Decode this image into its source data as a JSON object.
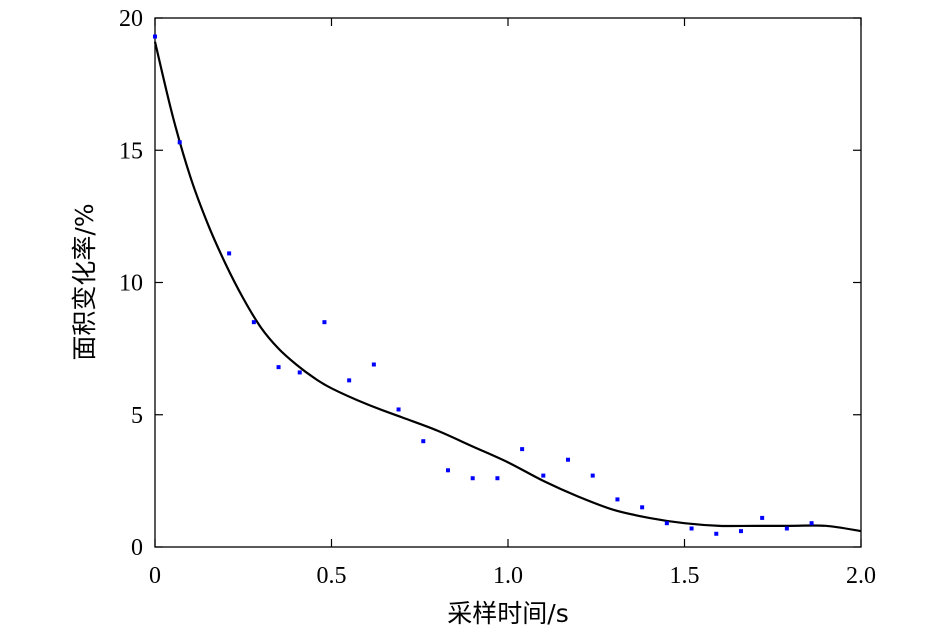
{
  "chart_data": {
    "type": "scatter",
    "title": "",
    "xlabel": "采样时间/s",
    "ylabel": "面积变化率/%",
    "xlim": [
      0,
      2.0
    ],
    "ylim": [
      0,
      20
    ],
    "x_ticks": [
      0,
      0.5,
      1.0,
      1.5,
      2.0
    ],
    "x_tick_labels": [
      "0",
      "0.5",
      "1.0",
      "1.5",
      "2.0"
    ],
    "y_ticks": [
      0,
      5,
      10,
      15,
      20
    ],
    "y_tick_labels": [
      "0",
      "5",
      "10",
      "15",
      "20"
    ],
    "grid": false,
    "series": [
      {
        "type": "scatter",
        "color": "#0000ff",
        "x": [
          0.0,
          0.07,
          0.21,
          0.28,
          0.35,
          0.41,
          0.48,
          0.55,
          0.62,
          0.69,
          0.76,
          0.83,
          0.9,
          0.97,
          1.04,
          1.1,
          1.17,
          1.24,
          1.31,
          1.38,
          1.45,
          1.52,
          1.59,
          1.66,
          1.72,
          1.79,
          1.86
        ],
        "y": [
          19.3,
          15.3,
          11.1,
          8.5,
          6.8,
          6.6,
          8.5,
          6.3,
          6.9,
          5.2,
          4.0,
          2.9,
          2.6,
          2.6,
          3.7,
          2.7,
          3.3,
          2.7,
          1.8,
          1.5,
          0.9,
          0.7,
          0.5,
          0.6,
          1.1,
          0.7,
          0.9
        ]
      },
      {
        "type": "line",
        "color": "#000000",
        "x": [
          0.0,
          0.05,
          0.1,
          0.15,
          0.2,
          0.25,
          0.3,
          0.35,
          0.4,
          0.45,
          0.5,
          0.6,
          0.7,
          0.8,
          0.9,
          1.0,
          1.1,
          1.2,
          1.3,
          1.4,
          1.5,
          1.6,
          1.7,
          1.8,
          1.9,
          2.0
        ],
        "y": [
          19.1,
          16.3,
          14.0,
          12.2,
          10.7,
          9.4,
          8.3,
          7.5,
          6.9,
          6.4,
          6.0,
          5.4,
          4.9,
          4.4,
          3.8,
          3.2,
          2.5,
          1.9,
          1.4,
          1.1,
          0.9,
          0.8,
          0.8,
          0.8,
          0.8,
          0.6
        ]
      }
    ]
  }
}
